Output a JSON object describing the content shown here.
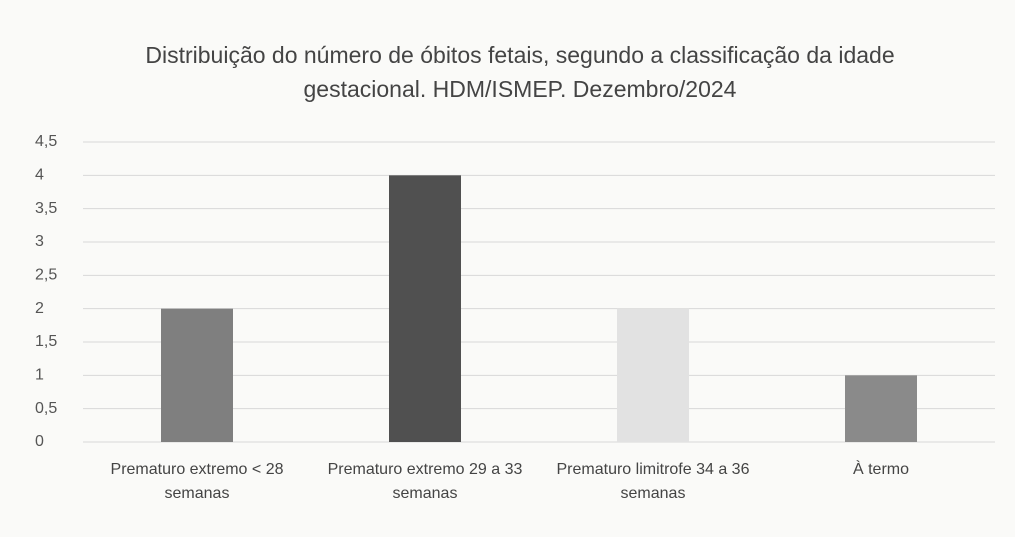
{
  "chart_data": {
    "type": "bar",
    "title": "Distribuição do número de óbitos fetais, segundo a classificação da idade gestacional.  HDM/ISMEP. Dezembro/2024",
    "categories": [
      "Prematuro extremo < 28 semanas",
      "Prematuro extremo 29 a 33 semanas",
      "Prematuro limitrofe 34 a 36 semanas",
      "À termo"
    ],
    "values": [
      2,
      4,
      2,
      1
    ],
    "colors": [
      "#7f7f7f",
      "#505050",
      "#e2e2e2",
      "#8a8a8a"
    ],
    "ylim": [
      0,
      4.5
    ],
    "yticks": [
      0,
      {
        "value": 0.5,
        "label": "0,5"
      },
      1,
      {
        "value": 1.5,
        "label": "1,5"
      },
      2,
      {
        "value": 2.5,
        "label": "2,5"
      },
      3,
      {
        "value": 3.5,
        "label": "3,5"
      },
      4,
      {
        "value": 4.5,
        "label": "4,5"
      }
    ],
    "grid": true
  }
}
